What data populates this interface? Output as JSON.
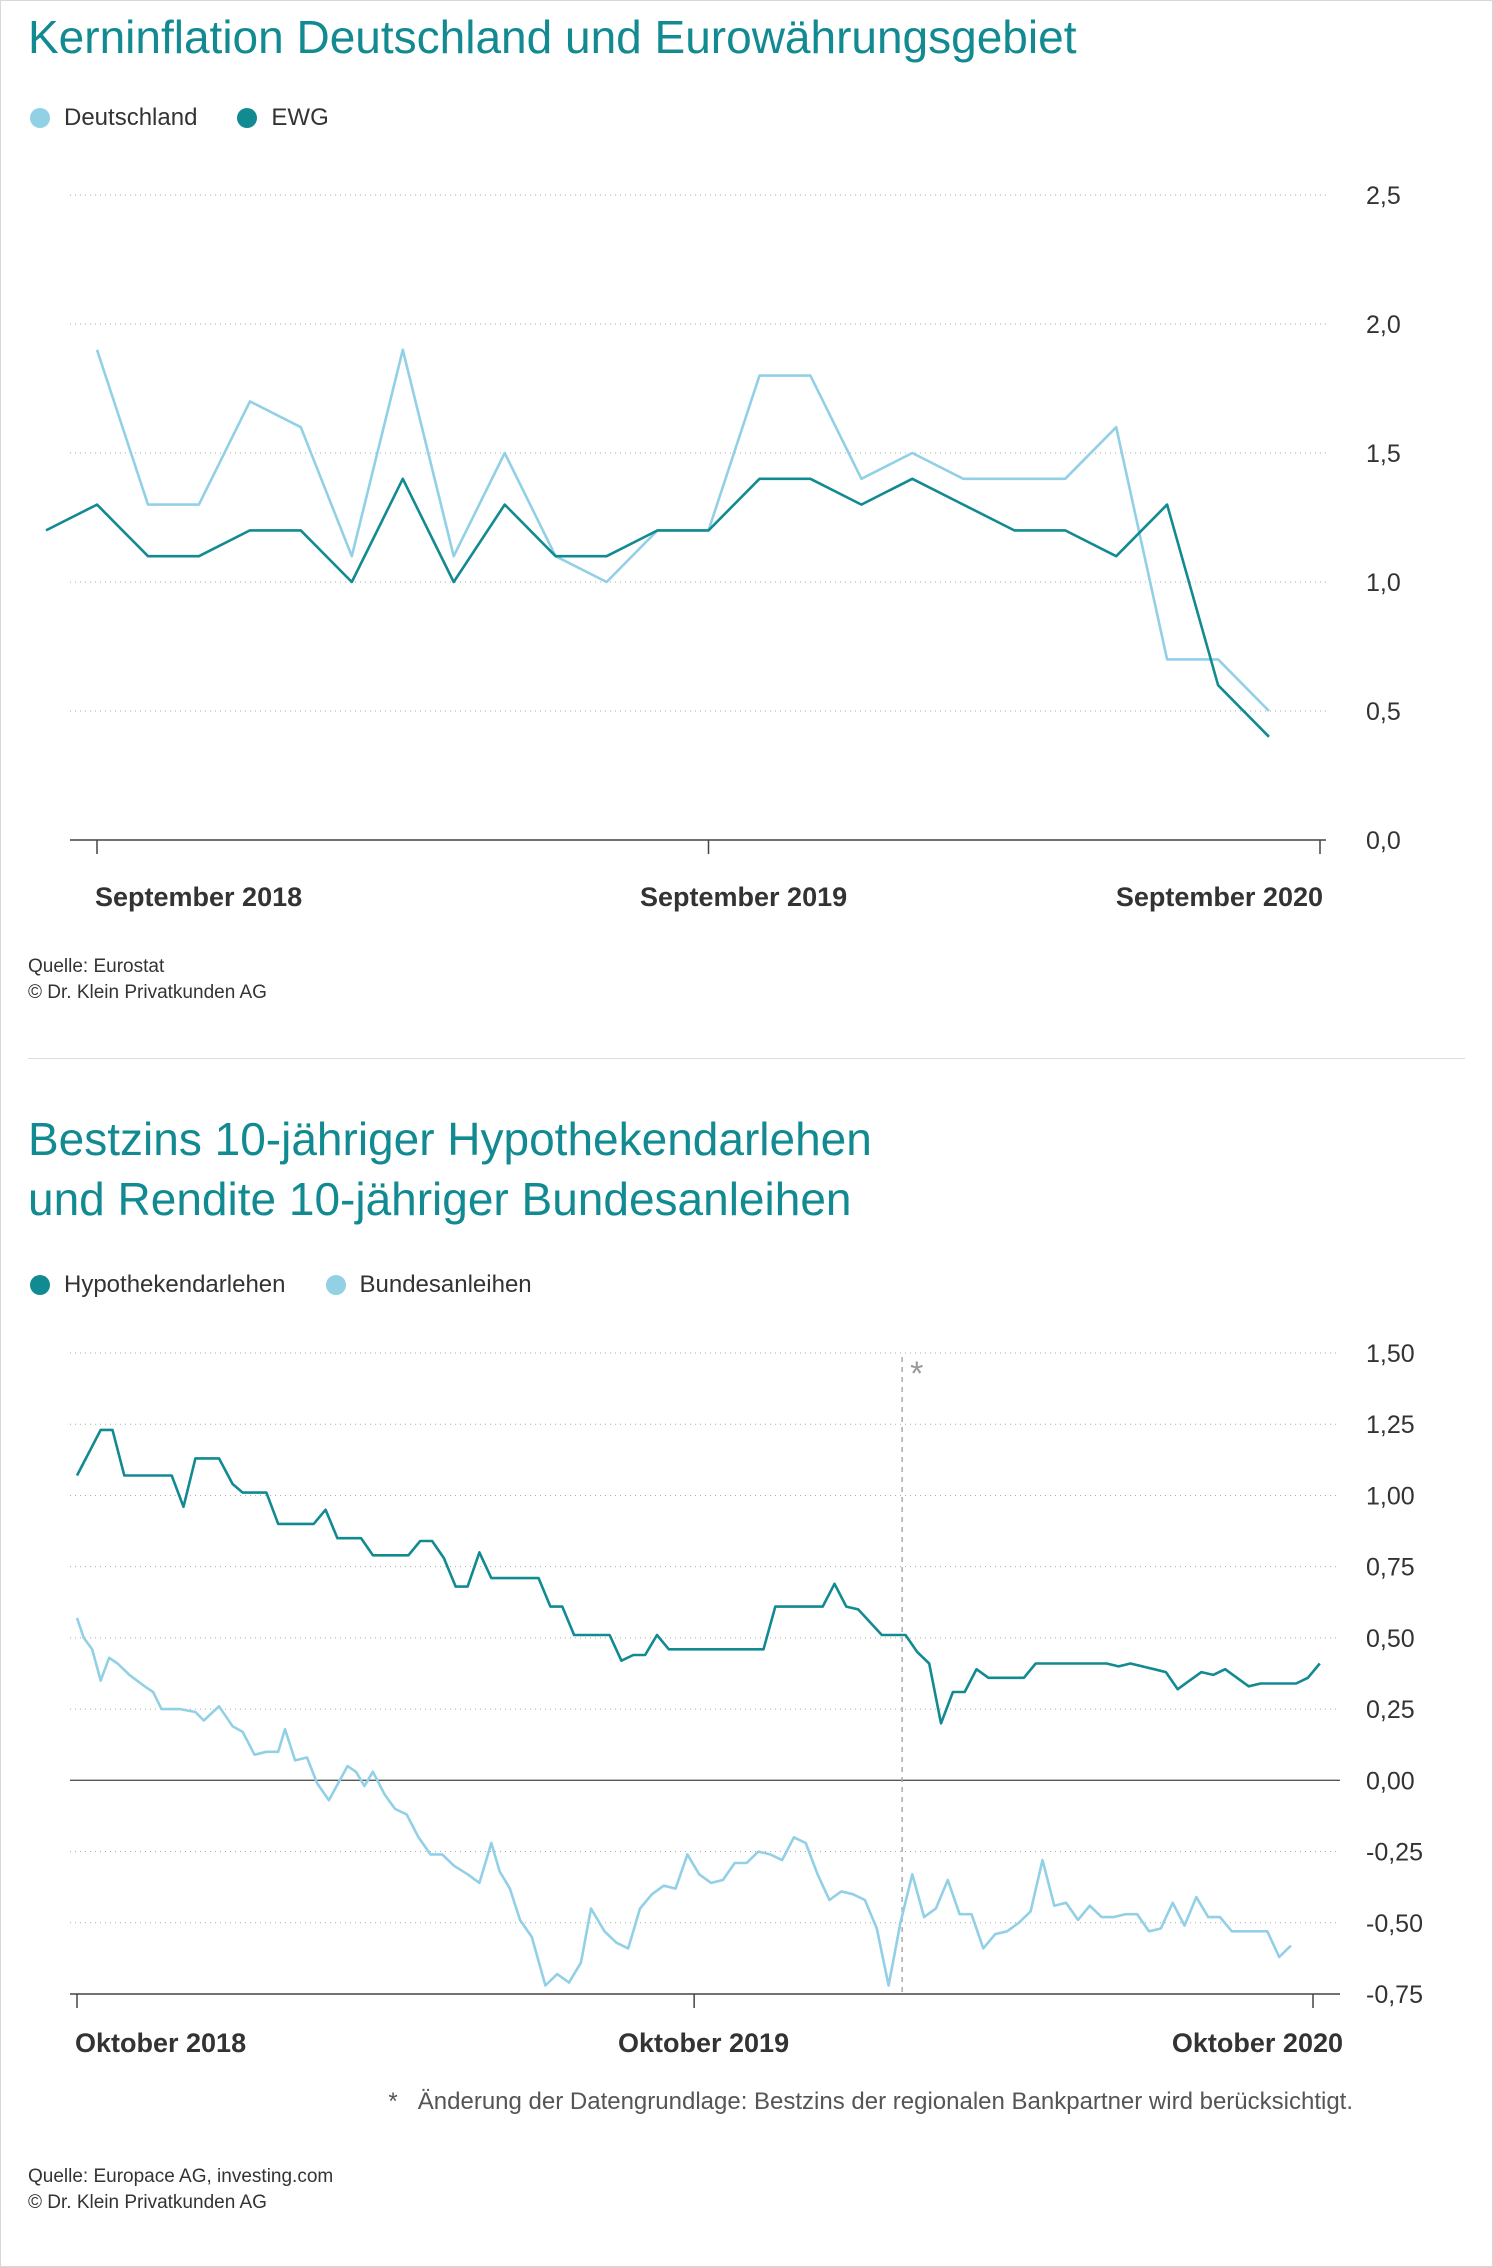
{
  "colors": {
    "dark": "#128a91",
    "light": "#92d0e6",
    "title": "#128a91",
    "grid": "#aaaaaa",
    "axis": "#444444"
  },
  "chart1": {
    "title": "Kerninflation Deutschland und Eurowährungsgebiet",
    "source_line1": "Quelle: Eurostat",
    "source_line2": "© Dr. Klein Privatkunden AG"
  },
  "chart2": {
    "title_line1": "Bestzins 10-jähriger Hypothekendarlehen",
    "title_line2": "und Rendite 10-jähriger Bundesanleihen",
    "footnote_marker": "*",
    "footnote_text": "Änderung der Datengrundlage: Bestzins der regionalen Bankpartner wird berücksichtigt.",
    "source_line1": "Quelle: Europace AG, investing.com",
    "source_line2": "© Dr. Klein Privatkunden AG"
  },
  "chart_data": [
    {
      "type": "line",
      "title": "Kerninflation Deutschland und Eurowährungsgebiet",
      "legend_position": "top-left",
      "x_start": "2018-08",
      "x": [
        "2018-08",
        "2018-09",
        "2018-10",
        "2018-11",
        "2018-12",
        "2019-01",
        "2019-02",
        "2019-03",
        "2019-04",
        "2019-05",
        "2019-06",
        "2019-07",
        "2019-08",
        "2019-09",
        "2019-10",
        "2019-11",
        "2019-12",
        "2020-01",
        "2020-02",
        "2020-03",
        "2020-04",
        "2020-05",
        "2020-06",
        "2020-07",
        "2020-08",
        "2020-09",
        "2020-10"
      ],
      "x_tick_labels": [
        "September 2018",
        "September 2019",
        "September 2020"
      ],
      "x_tick_values": [
        "2018-09",
        "2019-09",
        "2020-09"
      ],
      "y_tick_labels": [
        "0,0",
        "0,5",
        "1,0",
        "1,5",
        "2,0",
        "2,5"
      ],
      "ylim": [
        0,
        2.5
      ],
      "grid": "dotted horizontal",
      "series": [
        {
          "name": "Deutschland",
          "color": "light",
          "values": [
            null,
            1.9,
            1.3,
            1.3,
            1.7,
            1.6,
            1.1,
            1.9,
            1.1,
            1.5,
            1.1,
            1.0,
            1.2,
            1.2,
            1.8,
            1.8,
            1.4,
            1.5,
            1.4,
            1.4,
            1.4,
            1.6,
            0.7,
            0.7,
            0.5,
            null,
            null
          ]
        },
        {
          "name": "EWG",
          "color": "dark",
          "values": [
            1.2,
            1.3,
            1.1,
            1.1,
            1.2,
            1.2,
            1.0,
            1.4,
            1.0,
            1.3,
            1.1,
            1.1,
            1.2,
            1.2,
            1.4,
            1.4,
            1.3,
            1.4,
            1.3,
            1.2,
            1.2,
            1.1,
            1.3,
            0.6,
            0.4,
            null,
            null
          ]
        }
      ]
    },
    {
      "type": "line",
      "title": "Bestzins 10-jähriger Hypothekendarlehen und Rendite 10-jähriger Bundesanleihen",
      "legend_position": "top-left",
      "x_start": "2018-10-01",
      "x_end": "2020-10-20",
      "x_tick_labels": [
        "Oktober 2018",
        "Oktober 2019",
        "Oktober 2020"
      ],
      "x_tick_values": [
        "2018-10-01",
        "2019-10-01",
        "2020-10-01"
      ],
      "y_tick_labels": [
        "-0,75",
        "-0,50",
        "-0,25",
        "0,00",
        "0,25",
        "0,50",
        "0,75",
        "1,00",
        "1,25",
        "1,50"
      ],
      "ylim": [
        -0.75,
        1.5
      ],
      "annotation": {
        "marker": "*",
        "date": "2020-02-01",
        "style": "dashed vertical line"
      },
      "grid": "dotted horizontal, solid zero line",
      "series": [
        {
          "name": "Hypothekendarlehen",
          "color": "dark",
          "points": [
            [
              "2018-10-01",
              1.07
            ],
            [
              "2018-10-15",
              1.23
            ],
            [
              "2018-10-22",
              1.23
            ],
            [
              "2018-10-29",
              1.07
            ],
            [
              "2018-11-19",
              1.07
            ],
            [
              "2018-11-26",
              1.07
            ],
            [
              "2018-12-03",
              0.96
            ],
            [
              "2018-12-10",
              1.13
            ],
            [
              "2018-12-24",
              1.13
            ],
            [
              "2019-01-01",
              1.04
            ],
            [
              "2019-01-07",
              1.01
            ],
            [
              "2019-01-21",
              1.01
            ],
            [
              "2019-01-28",
              0.9
            ],
            [
              "2019-02-18",
              0.9
            ],
            [
              "2019-02-25",
              0.95
            ],
            [
              "2019-03-04",
              0.85
            ],
            [
              "2019-03-18",
              0.85
            ],
            [
              "2019-03-25",
              0.79
            ],
            [
              "2019-04-15",
              0.79
            ],
            [
              "2019-04-22",
              0.84
            ],
            [
              "2019-04-29",
              0.84
            ],
            [
              "2019-05-06",
              0.78
            ],
            [
              "2019-05-13",
              0.68
            ],
            [
              "2019-05-20",
              0.68
            ],
            [
              "2019-05-27",
              0.8
            ],
            [
              "2019-06-03",
              0.71
            ],
            [
              "2019-06-24",
              0.71
            ],
            [
              "2019-07-01",
              0.71
            ],
            [
              "2019-07-08",
              0.61
            ],
            [
              "2019-07-15",
              0.61
            ],
            [
              "2019-07-22",
              0.51
            ],
            [
              "2019-08-12",
              0.51
            ],
            [
              "2019-08-19",
              0.42
            ],
            [
              "2019-08-26",
              0.44
            ],
            [
              "2019-09-02",
              0.44
            ],
            [
              "2019-09-09",
              0.51
            ],
            [
              "2019-09-16",
              0.46
            ],
            [
              "2019-11-11",
              0.46
            ],
            [
              "2019-11-18",
              0.61
            ],
            [
              "2019-12-16",
              0.61
            ],
            [
              "2019-12-23",
              0.69
            ],
            [
              "2019-12-30",
              0.61
            ],
            [
              "2020-01-06",
              0.6
            ],
            [
              "2020-01-20",
              0.51
            ],
            [
              "2020-02-03",
              0.51
            ],
            [
              "2020-02-10",
              0.45
            ],
            [
              "2020-02-17",
              0.41
            ],
            [
              "2020-02-24",
              0.2
            ],
            [
              "2020-03-02",
              0.31
            ],
            [
              "2020-03-09",
              0.31
            ],
            [
              "2020-03-16",
              0.39
            ],
            [
              "2020-03-23",
              0.36
            ],
            [
              "2020-04-13",
              0.36
            ],
            [
              "2020-04-20",
              0.41
            ],
            [
              "2020-06-01",
              0.41
            ],
            [
              "2020-06-08",
              0.4
            ],
            [
              "2020-06-15",
              0.41
            ],
            [
              "2020-06-29",
              0.39
            ],
            [
              "2020-07-06",
              0.38
            ],
            [
              "2020-07-13",
              0.32
            ],
            [
              "2020-07-20",
              0.35
            ],
            [
              "2020-07-27",
              0.38
            ],
            [
              "2020-08-03",
              0.37
            ],
            [
              "2020-08-10",
              0.39
            ],
            [
              "2020-08-24",
              0.33
            ],
            [
              "2020-08-31",
              0.34
            ],
            [
              "2020-09-14",
              0.34
            ],
            [
              "2020-09-21",
              0.34
            ],
            [
              "2020-09-28",
              0.36
            ],
            [
              "2020-10-05",
              0.41
            ]
          ]
        },
        {
          "name": "Bundesanleihen",
          "color": "light",
          "points": [
            [
              "2018-10-01",
              0.57
            ],
            [
              "2018-10-05",
              0.5
            ],
            [
              "2018-10-10",
              0.46
            ],
            [
              "2018-10-15",
              0.35
            ],
            [
              "2018-10-20",
              0.43
            ],
            [
              "2018-10-25",
              0.41
            ],
            [
              "2018-11-01",
              0.37
            ],
            [
              "2018-11-10",
              0.33
            ],
            [
              "2018-11-15",
              0.31
            ],
            [
              "2018-11-20",
              0.25
            ],
            [
              "2018-12-01",
              0.25
            ],
            [
              "2018-12-10",
              0.24
            ],
            [
              "2018-12-15",
              0.21
            ],
            [
              "2018-12-24",
              0.26
            ],
            [
              "2019-01-01",
              0.19
            ],
            [
              "2019-01-07",
              0.17
            ],
            [
              "2019-01-14",
              0.09
            ],
            [
              "2019-01-21",
              0.1
            ],
            [
              "2019-01-28",
              0.1
            ],
            [
              "2019-02-01",
              0.18
            ],
            [
              "2019-02-07",
              0.07
            ],
            [
              "2019-02-14",
              0.08
            ],
            [
              "2019-02-20",
              -0.01
            ],
            [
              "2019-02-27",
              -0.07
            ],
            [
              "2019-03-10",
              0.05
            ],
            [
              "2019-03-15",
              0.03
            ],
            [
              "2019-03-20",
              -0.02
            ],
            [
              "2019-03-25",
              0.03
            ],
            [
              "2019-04-01",
              -0.05
            ],
            [
              "2019-04-07",
              -0.1
            ],
            [
              "2019-04-14",
              -0.12
            ],
            [
              "2019-04-21",
              -0.2
            ],
            [
              "2019-04-28",
              -0.26
            ],
            [
              "2019-05-05",
              -0.26
            ],
            [
              "2019-05-12",
              -0.3
            ],
            [
              "2019-05-20",
              -0.33
            ],
            [
              "2019-05-27",
              -0.36
            ],
            [
              "2019-06-03",
              -0.22
            ],
            [
              "2019-06-08",
              -0.32
            ],
            [
              "2019-06-14",
              -0.38
            ],
            [
              "2019-06-20",
              -0.49
            ],
            [
              "2019-06-27",
              -0.55
            ],
            [
              "2019-07-05",
              -0.72
            ],
            [
              "2019-07-12",
              -0.68
            ],
            [
              "2019-07-19",
              -0.71
            ],
            [
              "2019-07-26",
              -0.64
            ],
            [
              "2019-08-01",
              -0.45
            ],
            [
              "2019-08-09",
              -0.53
            ],
            [
              "2019-08-16",
              -0.57
            ],
            [
              "2019-08-23",
              -0.59
            ],
            [
              "2019-08-30",
              -0.45
            ],
            [
              "2019-09-06",
              -0.4
            ],
            [
              "2019-09-13",
              -0.37
            ],
            [
              "2019-09-20",
              -0.38
            ],
            [
              "2019-09-27",
              -0.26
            ],
            [
              "2019-10-04",
              -0.33
            ],
            [
              "2019-10-11",
              -0.36
            ],
            [
              "2019-10-18",
              -0.35
            ],
            [
              "2019-10-25",
              -0.29
            ],
            [
              "2019-11-01",
              -0.29
            ],
            [
              "2019-11-08",
              -0.25
            ],
            [
              "2019-11-15",
              -0.26
            ],
            [
              "2019-11-22",
              -0.28
            ],
            [
              "2019-11-29",
              -0.2
            ],
            [
              "2019-12-06",
              -0.22
            ],
            [
              "2019-12-13",
              -0.33
            ],
            [
              "2019-12-20",
              -0.42
            ],
            [
              "2019-12-27",
              -0.39
            ],
            [
              "2020-01-03",
              -0.4
            ],
            [
              "2020-01-10",
              -0.42
            ],
            [
              "2020-01-17",
              -0.52
            ],
            [
              "2020-01-24",
              -0.72
            ],
            [
              "2020-01-31",
              -0.5
            ],
            [
              "2020-02-07",
              -0.33
            ],
            [
              "2020-02-14",
              -0.48
            ],
            [
              "2020-02-21",
              -0.45
            ],
            [
              "2020-02-28",
              -0.35
            ],
            [
              "2020-03-06",
              -0.47
            ],
            [
              "2020-03-13",
              -0.47
            ],
            [
              "2020-03-20",
              -0.59
            ],
            [
              "2020-03-27",
              -0.54
            ],
            [
              "2020-04-03",
              -0.53
            ],
            [
              "2020-04-10",
              -0.5
            ],
            [
              "2020-04-17",
              -0.46
            ],
            [
              "2020-04-24",
              -0.28
            ],
            [
              "2020-05-01",
              -0.44
            ],
            [
              "2020-05-08",
              -0.43
            ],
            [
              "2020-05-15",
              -0.49
            ],
            [
              "2020-05-22",
              -0.44
            ],
            [
              "2020-05-29",
              -0.48
            ],
            [
              "2020-06-05",
              -0.48
            ],
            [
              "2020-06-12",
              -0.47
            ],
            [
              "2020-06-19",
              -0.47
            ],
            [
              "2020-06-26",
              -0.53
            ],
            [
              "2020-07-03",
              -0.52
            ],
            [
              "2020-07-10",
              -0.43
            ],
            [
              "2020-07-17",
              -0.51
            ],
            [
              "2020-07-24",
              -0.41
            ],
            [
              "2020-07-31",
              -0.48
            ],
            [
              "2020-08-07",
              -0.48
            ],
            [
              "2020-08-14",
              -0.53
            ],
            [
              "2020-08-28",
              -0.53
            ],
            [
              "2020-09-04",
              -0.53
            ],
            [
              "2020-09-11",
              -0.62
            ],
            [
              "2020-09-18",
              -0.58
            ]
          ]
        }
      ]
    }
  ]
}
